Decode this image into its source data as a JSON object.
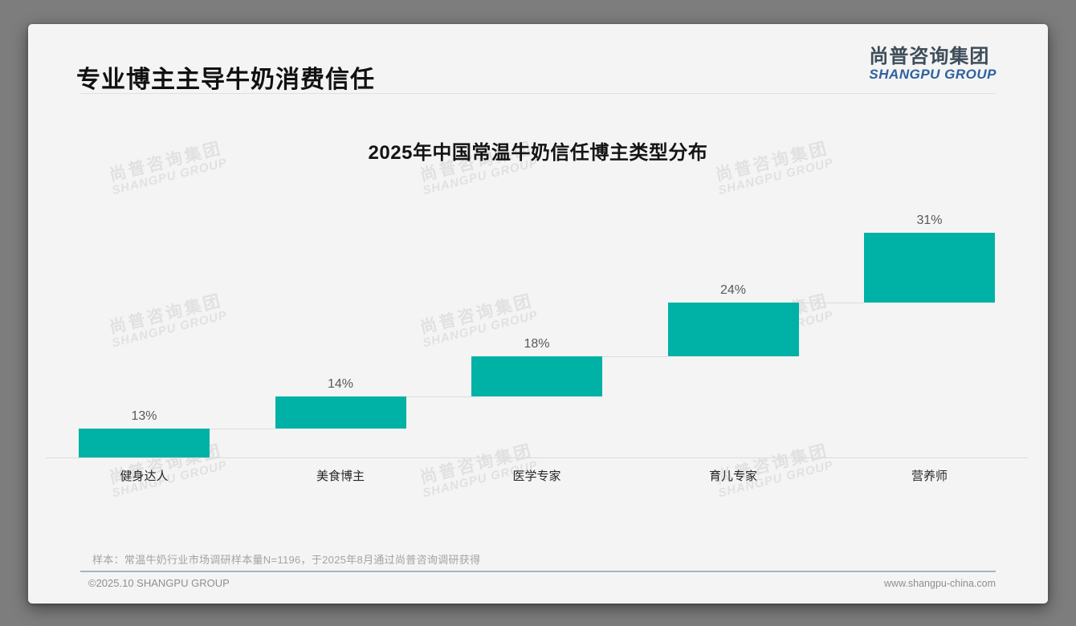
{
  "page": {
    "title": "专业博主主导牛奶消费信任",
    "logo": {
      "cn": "尚普咨询集团",
      "en": "SHANGPU GROUP"
    },
    "watermark": {
      "cn": "尚普咨询集团",
      "en": "SHANGPU GROUP"
    },
    "footer": {
      "note": "样本：常温牛奶行业市场调研样本量N=1196，于2025年8月通过尚普咨询调研获得",
      "copyright": "©2025.10 SHANGPU GROUP",
      "website": "www.shangpu-china.com"
    }
  },
  "colors": {
    "bar_teal": "#00b1a5",
    "connector_gray": "#dcdcdc",
    "logo_blue": "#2e619f",
    "logo_dark": "#3f4d5a",
    "footer_divider_blue_gray": "#a6b4c0",
    "slide_background": "#f4f4f4"
  },
  "chart_data": {
    "type": "bar",
    "subtype": "stepped-waterfall",
    "title": "2025年中国常温牛奶信任博主类型分布",
    "categories": [
      "健身达人",
      "美食博主",
      "医学专家",
      "育儿专家",
      "营养师"
    ],
    "values": [
      13,
      14,
      18,
      24,
      31
    ],
    "labels": [
      "13%",
      "14%",
      "18%",
      "24%",
      "31%"
    ],
    "cumulative": [
      13,
      27,
      45,
      69,
      100
    ],
    "unit": "%",
    "ylim": [
      0,
      100
    ],
    "xlabel": "",
    "ylabel": "",
    "grid": false,
    "legend": false,
    "bar_color": "#00b1a5",
    "connector_color": "#dcdcdc",
    "value_label_position": "above-bar",
    "note": "each bar starts at the cumulative top of the previous bar; light gray connector lines join successive bars"
  }
}
